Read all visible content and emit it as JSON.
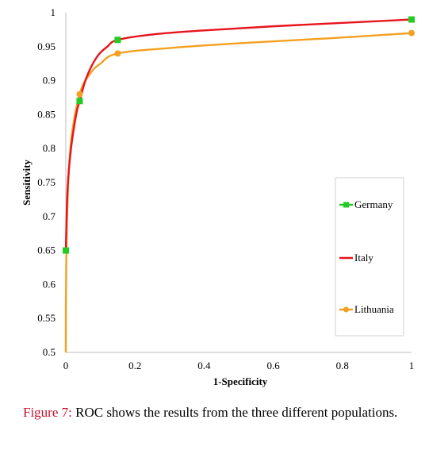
{
  "chart_data": {
    "type": "line",
    "title": "",
    "xlabel": "1-Specificity",
    "ylabel": "Sensitivity",
    "xlim": [
      0,
      1
    ],
    "ylim": [
      0.5,
      1
    ],
    "x_ticks": [
      "0",
      "0.2",
      "0.4",
      "0.6",
      "0.8",
      "1"
    ],
    "y_ticks": [
      "0.5",
      "0.55",
      "0.6",
      "0.65",
      "0.7",
      "0.75",
      "0.8",
      "0.85",
      "0.9",
      "0.95",
      "1"
    ],
    "grid": false,
    "legend_position": "right",
    "series": [
      {
        "name": "Germany",
        "color": "#22cc22",
        "marker": "square",
        "line": false,
        "points": [
          [
            0,
            0.65
          ],
          [
            0.04,
            0.87
          ],
          [
            0.15,
            0.96
          ],
          [
            1,
            0.99
          ]
        ]
      },
      {
        "name": "Italy",
        "color": "#e8141c",
        "marker": "none",
        "line": true,
        "points": [
          [
            0,
            0.65
          ],
          [
            0.005,
            0.74
          ],
          [
            0.015,
            0.8
          ],
          [
            0.03,
            0.85
          ],
          [
            0.04,
            0.87
          ],
          [
            0.06,
            0.905
          ],
          [
            0.09,
            0.935
          ],
          [
            0.12,
            0.95
          ],
          [
            0.15,
            0.96
          ],
          [
            0.25,
            0.968
          ],
          [
            0.4,
            0.974
          ],
          [
            0.6,
            0.98
          ],
          [
            0.8,
            0.985
          ],
          [
            1,
            0.99
          ]
        ]
      },
      {
        "name": "Lithuania",
        "color": "#f4a020",
        "marker": "circle",
        "line": true,
        "points": [
          [
            0,
            0.5
          ],
          [
            0.001,
            0.62
          ],
          [
            0.005,
            0.72
          ],
          [
            0.015,
            0.81
          ],
          [
            0.04,
            0.88
          ],
          [
            0.07,
            0.91
          ],
          [
            0.1,
            0.925
          ],
          [
            0.15,
            0.94
          ],
          [
            0.3,
            0.948
          ],
          [
            0.5,
            0.955
          ],
          [
            0.75,
            0.962
          ],
          [
            1,
            0.97
          ]
        ],
        "marker_points": [
          [
            0,
            0.65
          ],
          [
            0.04,
            0.88
          ],
          [
            0.15,
            0.94
          ],
          [
            1,
            0.97
          ]
        ]
      }
    ]
  },
  "caption": {
    "label": "Figure 7:",
    "text": " ROC shows the results from the three different populations."
  }
}
